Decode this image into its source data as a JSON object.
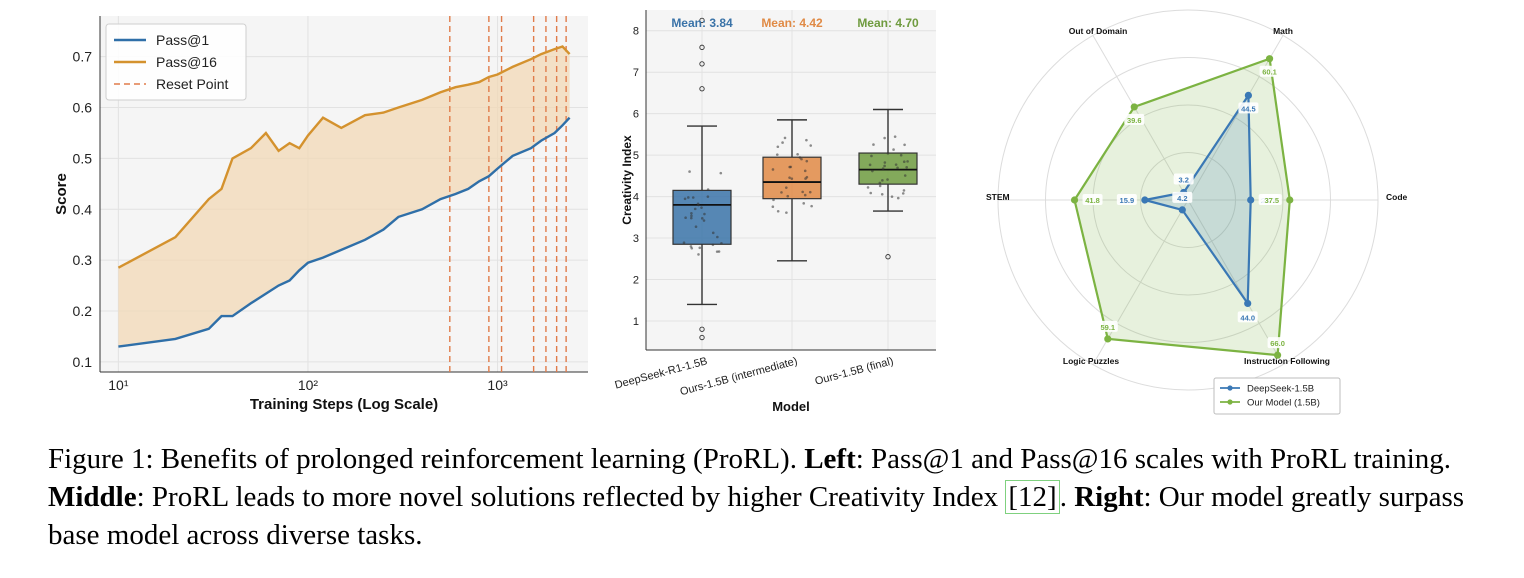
{
  "caption": {
    "prefix": "Figure 1: Benefits of prolonged reinforcement learning (ProRL). ",
    "left_label": "Left",
    "left_text": ": Pass@1 and Pass@16 scales with ProRL training. ",
    "middle_label": "Middle",
    "middle_text": ": ProRL leads to more novel solutions reflected by higher Creativity Index ",
    "cite": "[12]",
    "after_cite": ". ",
    "right_label": "Right",
    "right_text": ": Our model greatly surpass base model across diverse tasks."
  },
  "chart_data": [
    {
      "type": "line",
      "xlabel": "Training Steps (Log Scale)",
      "ylabel": "Score",
      "xscale": "log",
      "xlim": [
        8,
        3000
      ],
      "ylim": [
        0.08,
        0.78
      ],
      "xticks": [
        10,
        100,
        1000
      ],
      "xtick_labels": [
        "10¹",
        "10²",
        "10³"
      ],
      "yticks": [
        0.1,
        0.2,
        0.3,
        0.4,
        0.5,
        0.6,
        0.7
      ],
      "grid": true,
      "legend": "top-left",
      "fill_between": true,
      "series": [
        {
          "name": "Pass@1",
          "color": "#2f6fa8",
          "x": [
            10,
            20,
            30,
            35,
            40,
            50,
            70,
            80,
            90,
            100,
            120,
            150,
            200,
            250,
            300,
            400,
            500,
            600,
            700,
            800,
            900,
            1000,
            1200,
            1500,
            1700,
            2000,
            2200,
            2400
          ],
          "y": [
            0.13,
            0.145,
            0.165,
            0.19,
            0.19,
            0.215,
            0.25,
            0.26,
            0.28,
            0.295,
            0.305,
            0.32,
            0.34,
            0.36,
            0.385,
            0.4,
            0.42,
            0.43,
            0.44,
            0.455,
            0.465,
            0.48,
            0.505,
            0.52,
            0.535,
            0.55,
            0.565,
            0.58
          ]
        },
        {
          "name": "Pass@16",
          "color": "#d4922e",
          "x": [
            10,
            20,
            30,
            35,
            40,
            50,
            60,
            70,
            80,
            90,
            100,
            120,
            150,
            200,
            250,
            300,
            400,
            500,
            600,
            700,
            800,
            900,
            1000,
            1200,
            1500,
            1700,
            2000,
            2200,
            2400
          ],
          "y": [
            0.285,
            0.345,
            0.42,
            0.44,
            0.5,
            0.52,
            0.55,
            0.515,
            0.53,
            0.52,
            0.545,
            0.58,
            0.56,
            0.585,
            0.59,
            0.6,
            0.615,
            0.63,
            0.64,
            0.645,
            0.65,
            0.66,
            0.665,
            0.68,
            0.695,
            0.705,
            0.715,
            0.72,
            0.705
          ]
        },
        {
          "name": "Reset Point",
          "color": "#e07b4a",
          "style": "dashed",
          "x": [
            560,
            900,
            1050,
            1550,
            1800,
            2050,
            2300
          ]
        }
      ]
    },
    {
      "type": "box",
      "xlabel": "Model",
      "ylabel": "Creativity Index",
      "ylim": [
        0.3,
        8.5
      ],
      "yticks": [
        1,
        2,
        3,
        4,
        5,
        6,
        7,
        8
      ],
      "categories": [
        "DeepSeek-R1-1.5B",
        "Ours-1.5B (intermediate)",
        "Ours-1.5B (final)"
      ],
      "means": [
        "Mean: 3.84",
        "Mean: 4.42",
        "Mean: 4.70"
      ],
      "colors": [
        "#3a73a8",
        "#e08a45",
        "#6f9b3f"
      ],
      "boxes": [
        {
          "q1": 2.85,
          "median": 3.8,
          "q3": 4.15,
          "whisker_low": 1.4,
          "whisker_high": 5.7,
          "outliers": [
            0.6,
            0.8,
            6.6,
            7.2,
            7.6,
            8.25
          ]
        },
        {
          "q1": 3.95,
          "median": 4.35,
          "q3": 4.95,
          "whisker_low": 2.45,
          "whisker_high": 5.85,
          "outliers": []
        },
        {
          "q1": 4.3,
          "median": 4.65,
          "q3": 5.05,
          "whisker_low": 3.65,
          "whisker_high": 6.1,
          "outliers": [
            2.55
          ]
        }
      ],
      "grid": true
    },
    {
      "type": "radar",
      "axes": [
        "Math",
        "Code",
        "Instruction Following",
        "Logic Puzzles",
        "STEM",
        "Out of Domain"
      ],
      "rmax": 70,
      "legend": "bottom-center",
      "series": [
        {
          "name": "DeepSeek-1.5B",
          "color": "#3a78b5",
          "values": [
            44.5,
            23.1,
            44.0,
            4.2,
            15.9,
            3.2
          ]
        },
        {
          "name": "Our Model (1.5B)",
          "color": "#7cb342",
          "values": [
            60.1,
            37.5,
            66.0,
            59.1,
            41.8,
            39.6
          ]
        }
      ]
    }
  ]
}
